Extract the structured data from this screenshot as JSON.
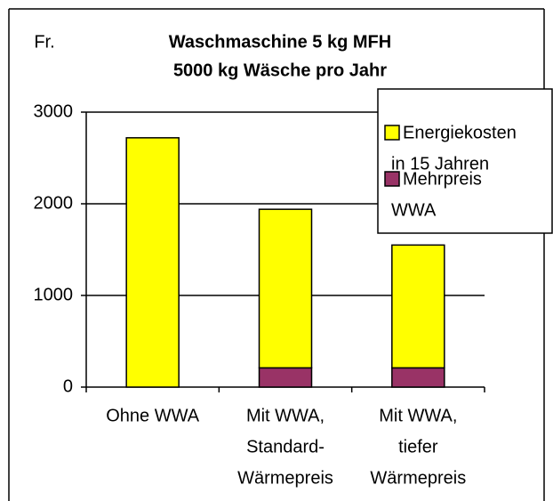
{
  "chart_data": {
    "type": "stacked_bar",
    "title": [
      "Waschmaschine 5 kg MFH",
      "5000 kg Wäsche pro Jahr"
    ],
    "y_label": "Fr.",
    "categories": [
      [
        "Ohne WWA"
      ],
      [
        "Mit WWA,",
        "Standard-",
        "Wärmepreis"
      ],
      [
        "Mit WWA,",
        "tiefer",
        "Wärmepreis"
      ]
    ],
    "series": [
      {
        "name": [
          "Mehrpreis",
          "WWA"
        ],
        "color": "#993366",
        "values": [
          0,
          210,
          210
        ]
      },
      {
        "name": [
          "Energiekosten",
          "in 15 Jahren"
        ],
        "color": "#ffff00",
        "values": [
          2720,
          1730,
          1340
        ]
      }
    ],
    "ylim": [
      0,
      3000
    ],
    "yticks": [
      0,
      1000,
      2000,
      3000
    ],
    "grid": true,
    "legend": "top-right"
  }
}
